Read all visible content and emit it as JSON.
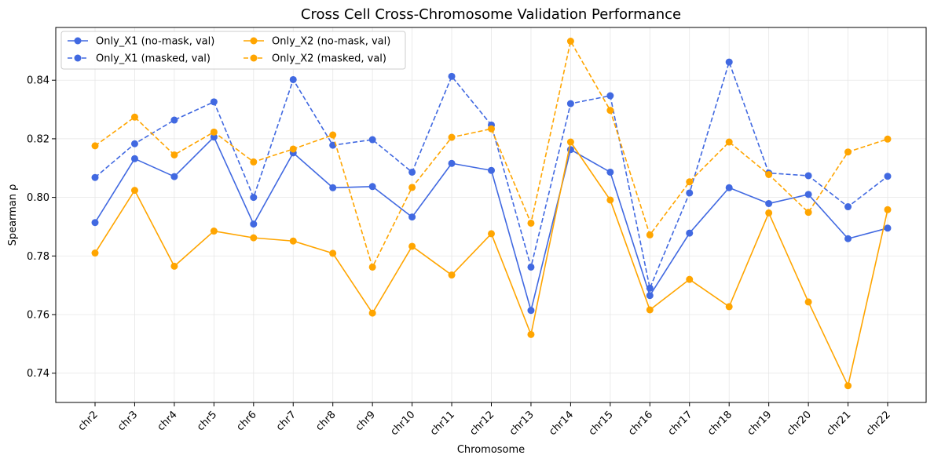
{
  "chart_data": {
    "type": "line",
    "title": "Cross Cell Cross-Chromosome Validation Performance",
    "xlabel": "Chromosome",
    "ylabel": "Spearman ρ",
    "categories": [
      "chr2",
      "chr3",
      "chr4",
      "chr5",
      "chr6",
      "chr7",
      "chr8",
      "chr9",
      "chr10",
      "chr11",
      "chr12",
      "chr13",
      "chr14",
      "chr15",
      "chr16",
      "chr17",
      "chr18",
      "chr19",
      "chr20",
      "chr21",
      "chr22"
    ],
    "ylim": [
      0.73,
      0.858
    ],
    "yticks": [
      0.74,
      0.76,
      0.78,
      0.8,
      0.82,
      0.84
    ],
    "ytick_labels": [
      "0.74",
      "0.76",
      "0.78",
      "0.80",
      "0.82",
      "0.84"
    ],
    "grid": true,
    "legend_position": "top-left",
    "series": [
      {
        "name": "Only_X1 (no-mask, val)",
        "color": "#4169E1",
        "linestyle": "solid",
        "values": [
          0.7914,
          0.8132,
          0.8071,
          0.8206,
          0.7909,
          0.8152,
          0.8033,
          0.8037,
          0.7933,
          0.8116,
          0.8092,
          0.7614,
          0.8163,
          0.8086,
          0.7665,
          0.7878,
          0.8033,
          0.7979,
          0.801,
          0.7859,
          0.7895
        ]
      },
      {
        "name": "Only_X1 (masked, val)",
        "color": "#4169E1",
        "linestyle": "dashed",
        "values": [
          0.8068,
          0.8183,
          0.8264,
          0.8326,
          0.8,
          0.8402,
          0.8178,
          0.8197,
          0.8086,
          0.8413,
          0.8247,
          0.7762,
          0.832,
          0.8347,
          0.769,
          0.8015,
          0.8462,
          0.8083,
          0.8074,
          0.7968,
          0.8072
        ]
      },
      {
        "name": "Only_X2 (no-mask, val)",
        "color": "#FFA500",
        "linestyle": "solid",
        "values": [
          0.781,
          0.8024,
          0.7765,
          0.7885,
          0.7862,
          0.7851,
          0.7809,
          0.7605,
          0.7833,
          0.7735,
          0.7876,
          0.7532,
          0.8189,
          0.7991,
          0.7616,
          0.772,
          0.7627,
          0.7947,
          0.7643,
          0.7357,
          0.7958
        ]
      },
      {
        "name": "Only_X2 (masked, val)",
        "color": "#FFA500",
        "linestyle": "dashed",
        "values": [
          0.8176,
          0.8274,
          0.8145,
          0.8223,
          0.8121,
          0.8165,
          0.8213,
          0.7762,
          0.8034,
          0.8205,
          0.8234,
          0.7912,
          0.8533,
          0.8297,
          0.7872,
          0.8053,
          0.8189,
          0.8078,
          0.7949,
          0.8155,
          0.8199
        ]
      }
    ]
  }
}
